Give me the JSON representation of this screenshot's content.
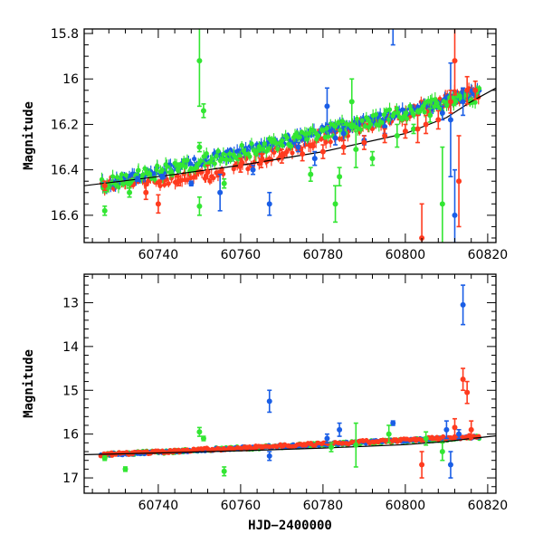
{
  "chart_data": [
    {
      "type": "scatter",
      "title": "",
      "xlabel": "",
      "ylabel": "Magnitude",
      "xlim": [
        60722,
        60822
      ],
      "ylim": [
        16.72,
        15.78
      ],
      "y_inverted": true,
      "grid": false,
      "xticks": [
        60740,
        60760,
        60780,
        60800,
        60820
      ],
      "yticks": [
        15.8,
        16.0,
        16.2,
        16.4,
        16.6
      ],
      "ytick_labels": [
        "15.8",
        "16",
        "16.2",
        "16.4",
        "16.6"
      ],
      "trend": {
        "x": [
          60722,
          60740,
          60760,
          60780,
          60800,
          60810,
          60816,
          60822
        ],
        "y": [
          16.47,
          16.43,
          16.38,
          16.32,
          16.24,
          16.17,
          16.1,
          16.04
        ]
      },
      "series": [
        {
          "color": "#1a5ee6",
          "points": [
            {
              "x": 60735,
              "y": 16.44,
              "e": 0.01
            },
            {
              "x": 60741,
              "y": 16.43,
              "e": 0.01
            },
            {
              "x": 60748,
              "y": 16.46,
              "e": 0.01
            },
            {
              "x": 60755,
              "y": 16.5,
              "e": 0.08
            },
            {
              "x": 60763,
              "y": 16.4,
              "e": 0.02
            },
            {
              "x": 60767,
              "y": 16.55,
              "e": 0.05
            },
            {
              "x": 60774,
              "y": 16.3,
              "e": 0.02
            },
            {
              "x": 60778,
              "y": 16.35,
              "e": 0.03
            },
            {
              "x": 60781,
              "y": 16.12,
              "e": 0.08
            },
            {
              "x": 60783,
              "y": 16.26,
              "e": 0.03
            },
            {
              "x": 60785,
              "y": 16.24,
              "e": 0.03
            },
            {
              "x": 60790,
              "y": 16.27,
              "e": 0.02
            },
            {
              "x": 60795,
              "y": 16.21,
              "e": 0.03
            },
            {
              "x": 60797,
              "y": 15.75,
              "e": 0.1
            },
            {
              "x": 60809,
              "y": 16.15,
              "e": 0.03
            },
            {
              "x": 60811,
              "y": 16.18,
              "e": 0.25
            },
            {
              "x": 60812,
              "y": 16.6,
              "e": 0.2
            },
            {
              "x": 60814,
              "y": 16.1,
              "e": 0.06
            }
          ]
        },
        {
          "color": "#33e633",
          "points": [
            {
              "x": 60727,
              "y": 16.58,
              "e": 0.02
            },
            {
              "x": 60733,
              "y": 16.5,
              "e": 0.02
            },
            {
              "x": 60745,
              "y": 16.39,
              "e": 0.02
            },
            {
              "x": 60750,
              "y": 15.92,
              "e": 0.2
            },
            {
              "x": 60751,
              "y": 16.14,
              "e": 0.03
            },
            {
              "x": 60750,
              "y": 16.3,
              "e": 0.02
            },
            {
              "x": 60750,
              "y": 16.56,
              "e": 0.04
            },
            {
              "x": 60756,
              "y": 16.46,
              "e": 0.02
            },
            {
              "x": 60777,
              "y": 16.42,
              "e": 0.03
            },
            {
              "x": 60783,
              "y": 16.55,
              "e": 0.08
            },
            {
              "x": 60784,
              "y": 16.43,
              "e": 0.04
            },
            {
              "x": 60787,
              "y": 16.1,
              "e": 0.1
            },
            {
              "x": 60788,
              "y": 16.31,
              "e": 0.08
            },
            {
              "x": 60792,
              "y": 16.35,
              "e": 0.03
            },
            {
              "x": 60798,
              "y": 16.25,
              "e": 0.05
            },
            {
              "x": 60802,
              "y": 16.22,
              "e": 0.02
            },
            {
              "x": 60806,
              "y": 16.16,
              "e": 0.03
            },
            {
              "x": 60809,
              "y": 16.55,
              "e": 0.25
            }
          ]
        },
        {
          "color": "#ff3b1f",
          "points": [
            {
              "x": 60727,
              "y": 16.47,
              "e": 0.02
            },
            {
              "x": 60737,
              "y": 16.5,
              "e": 0.03
            },
            {
              "x": 60740,
              "y": 16.55,
              "e": 0.04
            },
            {
              "x": 60745,
              "y": 16.45,
              "e": 0.02
            },
            {
              "x": 60752,
              "y": 16.41,
              "e": 0.03
            },
            {
              "x": 60760,
              "y": 16.38,
              "e": 0.03
            },
            {
              "x": 60765,
              "y": 16.36,
              "e": 0.03
            },
            {
              "x": 60770,
              "y": 16.34,
              "e": 0.03
            },
            {
              "x": 60775,
              "y": 16.33,
              "e": 0.03
            },
            {
              "x": 60780,
              "y": 16.32,
              "e": 0.03
            },
            {
              "x": 60785,
              "y": 16.3,
              "e": 0.03
            },
            {
              "x": 60790,
              "y": 16.28,
              "e": 0.03
            },
            {
              "x": 60795,
              "y": 16.25,
              "e": 0.03
            },
            {
              "x": 60800,
              "y": 16.23,
              "e": 0.03
            },
            {
              "x": 60803,
              "y": 16.22,
              "e": 0.06
            },
            {
              "x": 60804,
              "y": 16.7,
              "e": 0.15
            },
            {
              "x": 60805,
              "y": 16.2,
              "e": 0.04
            },
            {
              "x": 60808,
              "y": 16.18,
              "e": 0.04
            },
            {
              "x": 60811,
              "y": 16.1,
              "e": 0.05
            },
            {
              "x": 60812,
              "y": 15.92,
              "e": 0.15
            },
            {
              "x": 60813,
              "y": 16.45,
              "e": 0.2
            },
            {
              "x": 60815,
              "y": 16.05,
              "e": 0.06
            },
            {
              "x": 60817,
              "y": 16.05,
              "e": 0.04
            }
          ]
        }
      ],
      "bands": [
        {
          "color": "#ff3b1f",
          "x_start": 60726,
          "x_end": 60756,
          "y_start": 16.47,
          "y_end": 16.42,
          "jitter": 0.025
        },
        {
          "color": "#ff3b1f",
          "x_start": 60758,
          "x_end": 60818,
          "y_start": 16.39,
          "y_end": 16.05,
          "jitter": 0.03
        },
        {
          "color": "#1a5ee6",
          "x_start": 60726,
          "x_end": 60818,
          "y_start": 16.47,
          "y_end": 16.06,
          "jitter": 0.02
        },
        {
          "color": "#33e633",
          "x_start": 60726,
          "x_end": 60818,
          "y_start": 16.47,
          "y_end": 16.07,
          "jitter": 0.03
        }
      ]
    },
    {
      "type": "scatter",
      "title": "",
      "xlabel": "HJD−2400000",
      "ylabel": "Magnitude",
      "xlim": [
        60722,
        60822
      ],
      "ylim": [
        17.35,
        12.35
      ],
      "y_inverted": true,
      "grid": false,
      "xticks": [
        60740,
        60760,
        60780,
        60800,
        60820
      ],
      "yticks": [
        13,
        14,
        15,
        16,
        17
      ],
      "ytick_labels": [
        "13",
        "14",
        "15",
        "16",
        "17"
      ],
      "trend": {
        "x": [
          60722,
          60740,
          60760,
          60780,
          60800,
          60810,
          60816,
          60822
        ],
        "y": [
          16.47,
          16.43,
          16.38,
          16.32,
          16.24,
          16.17,
          16.1,
          16.04
        ]
      },
      "series": [
        {
          "color": "#1a5ee6",
          "points": [
            {
              "x": 60767,
              "y": 15.25,
              "e": 0.25
            },
            {
              "x": 60767,
              "y": 16.5,
              "e": 0.1
            },
            {
              "x": 60781,
              "y": 16.1,
              "e": 0.1
            },
            {
              "x": 60784,
              "y": 15.9,
              "e": 0.15
            },
            {
              "x": 60797,
              "y": 15.75,
              "e": 0.05
            },
            {
              "x": 60810,
              "y": 15.9,
              "e": 0.2
            },
            {
              "x": 60811,
              "y": 16.7,
              "e": 0.3
            },
            {
              "x": 60814,
              "y": 13.05,
              "e": 0.45
            },
            {
              "x": 60813,
              "y": 16.0,
              "e": 0.1
            }
          ]
        },
        {
          "color": "#33e633",
          "points": [
            {
              "x": 60727,
              "y": 16.55,
              "e": 0.05
            },
            {
              "x": 60732,
              "y": 16.8,
              "e": 0.05
            },
            {
              "x": 60750,
              "y": 15.95,
              "e": 0.1
            },
            {
              "x": 60751,
              "y": 16.1,
              "e": 0.05
            },
            {
              "x": 60756,
              "y": 16.85,
              "e": 0.1
            },
            {
              "x": 60782,
              "y": 16.3,
              "e": 0.1
            },
            {
              "x": 60788,
              "y": 16.25,
              "e": 0.5
            },
            {
              "x": 60796,
              "y": 16.0,
              "e": 0.2
            },
            {
              "x": 60805,
              "y": 16.1,
              "e": 0.15
            },
            {
              "x": 60809,
              "y": 16.4,
              "e": 0.2
            }
          ]
        },
        {
          "color": "#ff3b1f",
          "points": [
            {
              "x": 60804,
              "y": 16.7,
              "e": 0.3
            },
            {
              "x": 60812,
              "y": 15.85,
              "e": 0.2
            },
            {
              "x": 60814,
              "y": 14.75,
              "e": 0.25
            },
            {
              "x": 60815,
              "y": 15.05,
              "e": 0.25
            },
            {
              "x": 60816,
              "y": 15.9,
              "e": 0.2
            }
          ]
        }
      ],
      "bands": [
        {
          "color": "#33e633",
          "x_start": 60726,
          "x_end": 60818,
          "y_start": 16.47,
          "y_end": 16.07,
          "jitter": 0.04
        },
        {
          "color": "#1a5ee6",
          "x_start": 60726,
          "x_end": 60818,
          "y_start": 16.47,
          "y_end": 16.06,
          "jitter": 0.03
        },
        {
          "color": "#ff3b1f",
          "x_start": 60726,
          "x_end": 60818,
          "y_start": 16.47,
          "y_end": 16.05,
          "jitter": 0.035
        }
      ]
    }
  ]
}
